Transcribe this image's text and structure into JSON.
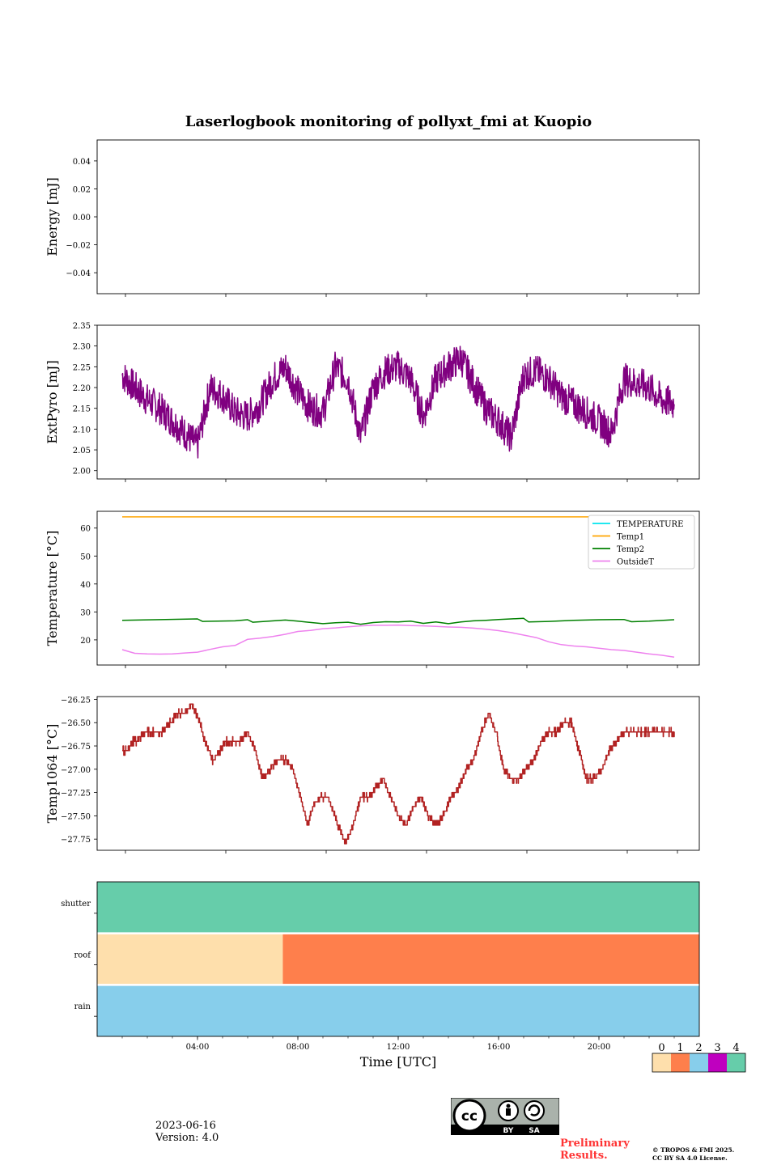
{
  "title": "Laserlogbook monitoring of pollyxt_fmi at Kuopio",
  "footer": {
    "date": "2023-06-16",
    "version": "Version: 4.0",
    "preliminary": "Preliminary",
    "preliminary2": "Results.",
    "copyright1": "© TROPOS & FMI 2025.",
    "copyright2": "CC BY SA 4.0 License.",
    "cc_logo": {
      "cc": "cc",
      "by": "BY",
      "sa": "SA"
    }
  },
  "chart_data": [
    {
      "type": "line",
      "ylabel": "Energy [mJ]",
      "ylim": [
        -0.055,
        0.055
      ],
      "yticks": [
        0.04,
        0.02,
        0.0,
        -0.02,
        -0.04
      ],
      "ytick_labels": [
        "0.04",
        "0.02",
        "0.00",
        "−0.02",
        "−0.04"
      ],
      "xlim": [
        0,
        24
      ],
      "series": []
    },
    {
      "type": "line",
      "ylabel": "ExtPyro [mJ]",
      "ylim": [
        1.98,
        2.35
      ],
      "yticks": [
        2.35,
        2.3,
        2.25,
        2.2,
        2.15,
        2.1,
        2.05,
        2.0
      ],
      "ytick_labels": [
        "2.35",
        "2.30",
        "2.25",
        "2.20",
        "2.15",
        "2.10",
        "2.05",
        "2.00"
      ],
      "xlim": [
        0,
        24
      ],
      "series": [
        {
          "name": "ExtPyro",
          "color": "#800080",
          "x": [
            1.0,
            1.5,
            2.0,
            2.5,
            3.0,
            3.5,
            4.0,
            4.5,
            5.0,
            5.5,
            6.0,
            6.5,
            7.0,
            7.5,
            8.0,
            8.5,
            9.0,
            9.5,
            10.0,
            10.5,
            11.0,
            11.5,
            12.0,
            12.5,
            13.0,
            13.5,
            14.0,
            14.5,
            15.0,
            15.5,
            16.0,
            16.5,
            17.0,
            17.5,
            18.0,
            18.5,
            19.0,
            19.5,
            20.0,
            20.5,
            21.0,
            21.5,
            22.0,
            22.5,
            23.0
          ],
          "y": [
            2.23,
            2.2,
            2.17,
            2.15,
            2.12,
            2.09,
            2.06,
            2.2,
            2.18,
            2.14,
            2.13,
            2.16,
            2.22,
            2.25,
            2.19,
            2.15,
            2.14,
            2.25,
            2.22,
            2.08,
            2.2,
            2.24,
            2.25,
            2.22,
            2.13,
            2.22,
            2.25,
            2.27,
            2.21,
            2.15,
            2.12,
            2.08,
            2.23,
            2.24,
            2.22,
            2.18,
            2.16,
            2.14,
            2.12,
            2.09,
            2.22,
            2.21,
            2.2,
            2.17,
            2.16
          ],
          "noise": 0.04
        }
      ]
    },
    {
      "type": "line",
      "ylabel": "Temperature [°C]",
      "ylim": [
        11,
        66
      ],
      "yticks": [
        60,
        50,
        40,
        30,
        20
      ],
      "ytick_labels": [
        "60",
        "50",
        "40",
        "30",
        "20"
      ],
      "xlim": [
        0,
        24
      ],
      "legend": [
        "TEMPERATURE",
        "Temp1",
        "Temp2",
        "OutsideT"
      ],
      "series": [
        {
          "name": "TEMPERATURE",
          "color": "#00e5ee",
          "x": [],
          "y": []
        },
        {
          "name": "Temp1",
          "color": "#ffa500",
          "x": [
            1,
            23
          ],
          "y": [
            64,
            64
          ]
        },
        {
          "name": "Temp2",
          "color": "#008000",
          "x": [
            1,
            4,
            4.2,
            5.5,
            6,
            6.2,
            7.5,
            8,
            9,
            9.5,
            10,
            10.5,
            11,
            11.5,
            12,
            12.5,
            13,
            13.5,
            14,
            14.5,
            15,
            15.5,
            16,
            16.5,
            17,
            17.2,
            18,
            19,
            20,
            21,
            21.3,
            22,
            23
          ],
          "y": [
            27,
            27.5,
            26.6,
            26.8,
            27.2,
            26.3,
            27.1,
            26.7,
            25.8,
            26.1,
            26.3,
            25.6,
            26.2,
            26.5,
            26.4,
            26.7,
            25.9,
            26.4,
            25.8,
            26.4,
            26.8,
            27,
            27.3,
            27.5,
            27.7,
            26.4,
            26.6,
            27,
            27.2,
            27.3,
            26.5,
            26.7,
            27.2
          ]
        },
        {
          "name": "OutsideT",
          "color": "#ee82ee",
          "x": [
            1,
            1.5,
            2,
            2.5,
            3,
            3.5,
            4,
            4.5,
            5,
            5.5,
            6,
            6.5,
            7,
            7.5,
            8,
            8.5,
            9,
            9.5,
            10,
            10.5,
            11,
            11.5,
            12,
            12.5,
            13,
            13.5,
            14,
            14.5,
            15,
            15.5,
            16,
            16.5,
            17,
            17.5,
            18,
            18.5,
            19,
            19.5,
            20,
            20.5,
            21,
            21.5,
            22,
            22.5,
            23
          ],
          "y": [
            16.5,
            15.2,
            15,
            14.9,
            15,
            15.3,
            15.6,
            16.6,
            17.5,
            18,
            20.2,
            20.6,
            21.2,
            22,
            23,
            23.4,
            24,
            24.3,
            24.7,
            25,
            25.2,
            25.2,
            25.3,
            25.1,
            25,
            24.8,
            24.6,
            24.5,
            24.2,
            23.8,
            23.3,
            22.6,
            21.7,
            20.8,
            19.3,
            18.3,
            17.8,
            17.5,
            17,
            16.5,
            16.2,
            15.6,
            15,
            14.5,
            13.8
          ]
        }
      ]
    },
    {
      "type": "line",
      "ylabel": "Temp1064 [°C]",
      "ylim": [
        -27.87,
        -26.22
      ],
      "yticks": [
        -26.25,
        -26.5,
        -26.75,
        -27.0,
        -27.25,
        -27.5,
        -27.75
      ],
      "ytick_labels": [
        "−26.25",
        "−26.50",
        "−26.75",
        "−27.00",
        "−27.25",
        "−27.50",
        "−27.75"
      ],
      "xlim": [
        0,
        24
      ],
      "series": [
        {
          "name": "Temp1064",
          "color": "#b22222",
          "x": [
            1,
            1.2,
            1.4,
            1.6,
            1.9,
            2.2,
            2.6,
            2.9,
            3.2,
            3.5,
            3.8,
            4.1,
            4.3,
            4.6,
            4.9,
            5.1,
            5.4,
            5.7,
            6.0,
            6.3,
            6.6,
            6.9,
            7.2,
            7.5,
            7.8,
            8.1,
            8.4,
            8.6,
            8.9,
            9.2,
            9.6,
            9.9,
            10.2,
            10.5,
            10.8,
            11.1,
            11.4,
            11.7,
            12.0,
            12.3,
            12.6,
            12.9,
            13.2,
            13.5,
            13.8,
            14.1,
            14.4,
            14.7,
            15.0,
            15.3,
            15.6,
            15.9,
            16.2,
            16.5,
            16.8,
            17.1,
            17.4,
            17.7,
            18.0,
            18.3,
            18.6,
            18.9,
            19.2,
            19.5,
            19.8,
            20.1,
            20.4,
            20.7,
            21.0,
            21.3,
            21.6,
            21.9,
            22.2,
            22.5,
            22.8,
            23.0
          ],
          "y": [
            -26.8,
            -26.8,
            -26.7,
            -26.7,
            -26.6,
            -26.6,
            -26.6,
            -26.5,
            -26.4,
            -26.4,
            -26.3,
            -26.5,
            -26.7,
            -26.9,
            -26.8,
            -26.7,
            -26.7,
            -26.7,
            -26.6,
            -26.8,
            -27.1,
            -27.0,
            -26.9,
            -26.9,
            -27.0,
            -27.3,
            -27.6,
            -27.4,
            -27.3,
            -27.3,
            -27.6,
            -27.8,
            -27.6,
            -27.3,
            -27.3,
            -27.2,
            -27.1,
            -27.3,
            -27.5,
            -27.6,
            -27.4,
            -27.3,
            -27.5,
            -27.6,
            -27.5,
            -27.3,
            -27.2,
            -27.0,
            -26.9,
            -26.6,
            -26.4,
            -26.6,
            -27.0,
            -27.1,
            -27.1,
            -27.0,
            -26.9,
            -26.7,
            -26.6,
            -26.6,
            -26.5,
            -26.5,
            -26.8,
            -27.1,
            -27.1,
            -27.0,
            -26.8,
            -26.7,
            -26.6,
            -26.6,
            -26.6,
            -26.6,
            -26.6,
            -26.6,
            -26.6,
            -26.6
          ],
          "noise": 0.03
        }
      ]
    },
    {
      "type": "heatmap",
      "xlabel": "Time [UTC]",
      "xlim": [
        0,
        24
      ],
      "xticks": [
        4,
        8,
        12,
        16,
        20
      ],
      "xtick_labels": [
        "04:00",
        "08:00",
        "12:00",
        "16:00",
        "20:00"
      ],
      "rows": [
        "shutter",
        "roof",
        "rain"
      ],
      "segments": [
        {
          "row": "shutter",
          "start": 0,
          "end": 24,
          "state": 4
        },
        {
          "row": "roof",
          "start": 0,
          "end": 7.4,
          "state": 0
        },
        {
          "row": "roof",
          "start": 7.4,
          "end": 24,
          "state": 1
        },
        {
          "row": "rain",
          "start": 0,
          "end": 24,
          "state": 2
        }
      ],
      "colorbar": {
        "labels": [
          "0",
          "1",
          "2",
          "3",
          "4"
        ],
        "colors": [
          "#fedfac",
          "#fe7f4c",
          "#87ceeb",
          "#bf00bf",
          "#66cdaa"
        ]
      }
    }
  ]
}
